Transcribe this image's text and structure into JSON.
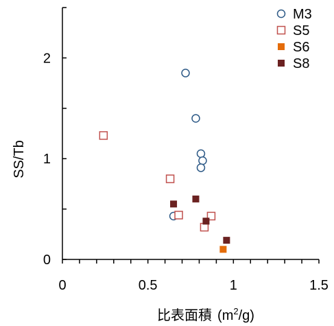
{
  "chart_data": {
    "type": "scatter",
    "title": "",
    "xlabel": "比表面積",
    "xlabel_unit_prefix": "(m",
    "xlabel_unit_sup": "2",
    "xlabel_unit_suffix": "/g)",
    "ylabel": "SS/Tb",
    "xlim": [
      0,
      1.5
    ],
    "ylim": [
      0,
      2.5
    ],
    "x_ticks": [
      {
        "value": 0,
        "label": "0"
      },
      {
        "value": 0.5,
        "label": "0.5"
      },
      {
        "value": 1,
        "label": "1"
      },
      {
        "value": 1.5,
        "label": "1.5"
      }
    ],
    "y_ticks": [
      {
        "value": 0,
        "label": "0"
      },
      {
        "value": 1,
        "label": "1"
      },
      {
        "value": 2,
        "label": "2"
      }
    ],
    "x_minor_step": 0.1,
    "y_minor_step": 0.5,
    "grid": false,
    "legend_position": "top-right",
    "series": [
      {
        "name": "M3",
        "marker": "circle-open",
        "color": "#2E5A87",
        "points": [
          [
            0.72,
            1.85
          ],
          [
            0.78,
            1.4
          ],
          [
            0.81,
            1.05
          ],
          [
            0.82,
            0.98
          ],
          [
            0.81,
            0.91
          ],
          [
            0.65,
            0.43
          ]
        ]
      },
      {
        "name": "S5",
        "marker": "square-open",
        "color": "#C0504D",
        "points": [
          [
            0.24,
            1.23
          ],
          [
            0.63,
            0.8
          ],
          [
            0.68,
            0.44
          ],
          [
            0.87,
            0.43
          ],
          [
            0.83,
            0.32
          ]
        ]
      },
      {
        "name": "S6",
        "marker": "square-filled",
        "color": "#E46C0A",
        "points": [
          [
            0.94,
            0.1
          ]
        ]
      },
      {
        "name": "S8",
        "marker": "square-filled",
        "color": "#6B2221",
        "points": [
          [
            0.65,
            0.55
          ],
          [
            0.78,
            0.6
          ],
          [
            0.84,
            0.38
          ],
          [
            0.96,
            0.19
          ]
        ]
      }
    ]
  }
}
